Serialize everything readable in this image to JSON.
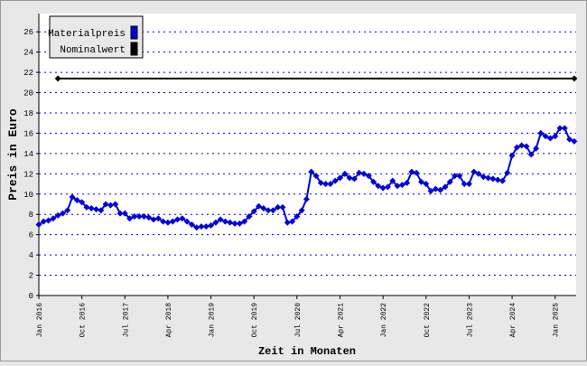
{
  "chart_data": {
    "type": "line",
    "y_label": "Preis in Euro",
    "x_label": "Zeit in Monaten",
    "xlim": [
      0,
      112.4
    ],
    "ylim": [
      0,
      27.8
    ],
    "yticks": [
      0,
      2,
      4,
      6,
      8,
      10,
      12,
      14,
      16,
      18,
      20,
      22,
      24,
      26
    ],
    "xticks": [
      {
        "value": 0,
        "label": "Jan 2016"
      },
      {
        "value": 9,
        "label": "Oct 2016"
      },
      {
        "value": 18,
        "label": "Jul 2017"
      },
      {
        "value": 27,
        "label": "Apr 2018"
      },
      {
        "value": 36,
        "label": "Jan 2019"
      },
      {
        "value": 45,
        "label": "Oct 2019"
      },
      {
        "value": 54,
        "label": "Jul 2020"
      },
      {
        "value": 63,
        "label": "Apr 2021"
      },
      {
        "value": 72,
        "label": "Jan 2022"
      },
      {
        "value": 81,
        "label": "Oct 2022"
      },
      {
        "value": 90,
        "label": "Jul 2023"
      },
      {
        "value": 99,
        "label": "Apr 2024"
      },
      {
        "value": 108,
        "label": "Jan 2025"
      }
    ],
    "grid": true,
    "legend": "top-left",
    "series": [
      {
        "name": "Materialpreis",
        "color": "#0000dd",
        "x": [
          0,
          1,
          2,
          3,
          4,
          5,
          6,
          7,
          8,
          9,
          10,
          11,
          12,
          13,
          14,
          15,
          16,
          17,
          18,
          19,
          20,
          21,
          22,
          23,
          24,
          25,
          26,
          27,
          28,
          29,
          30,
          31,
          32,
          33,
          34,
          35,
          36,
          37,
          38,
          39,
          40,
          41,
          42,
          43,
          44,
          45,
          46,
          47,
          48,
          49,
          50,
          51,
          52,
          53,
          54,
          55,
          56,
          57,
          58,
          59,
          60,
          61,
          62,
          63,
          64,
          65,
          66,
          67,
          68,
          69,
          70,
          71,
          72,
          73,
          74,
          75,
          76,
          77,
          78,
          79,
          80,
          81,
          82,
          83,
          84,
          85,
          86,
          87,
          88,
          89,
          90,
          91,
          92,
          93,
          94,
          95,
          96,
          97,
          98,
          99,
          100,
          101,
          102,
          103,
          104,
          105,
          106,
          107,
          108,
          109,
          110,
          111,
          112
        ],
        "values": [
          7.0,
          7.3,
          7.4,
          7.6,
          7.9,
          8.1,
          8.4,
          9.7,
          9.4,
          9.2,
          8.7,
          8.6,
          8.5,
          8.4,
          9.0,
          8.9,
          9.0,
          8.1,
          8.1,
          7.6,
          7.8,
          7.8,
          7.8,
          7.7,
          7.5,
          7.6,
          7.3,
          7.2,
          7.3,
          7.5,
          7.6,
          7.3,
          7.0,
          6.7,
          6.8,
          6.8,
          6.9,
          7.2,
          7.5,
          7.3,
          7.2,
          7.1,
          7.1,
          7.3,
          7.8,
          8.3,
          8.8,
          8.6,
          8.4,
          8.4,
          8.7,
          8.7,
          7.2,
          7.3,
          7.8,
          8.4,
          9.5,
          12.2,
          11.8,
          11.1,
          11.0,
          11.0,
          11.3,
          11.6,
          12.0,
          11.6,
          11.5,
          12.1,
          12.0,
          11.8,
          11.2,
          10.8,
          10.6,
          10.7,
          11.3,
          10.8,
          10.9,
          11.1,
          12.2,
          12.1,
          11.2,
          11.0,
          10.3,
          10.5,
          10.4,
          10.7,
          11.2,
          11.8,
          11.8,
          11.0,
          11.0,
          12.2,
          12.0,
          11.7,
          11.6,
          11.5,
          11.4,
          11.3,
          12.1,
          13.8,
          14.6,
          14.8,
          14.7,
          13.9,
          14.5,
          16.0,
          15.7,
          15.5,
          15.7,
          16.5,
          16.5,
          15.4,
          15.2
        ]
      },
      {
        "name": "Nominalwert",
        "color": "#000000",
        "x": [
          4,
          112
        ],
        "values": [
          21.4,
          21.4
        ]
      }
    ]
  }
}
